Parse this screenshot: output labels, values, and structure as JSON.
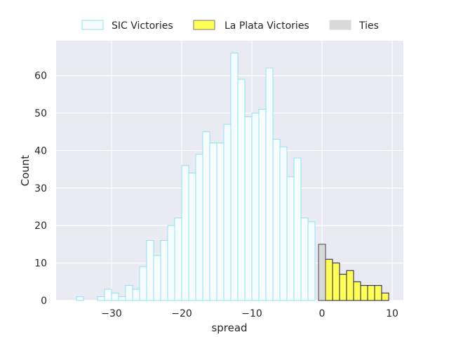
{
  "chart_data": {
    "type": "bar",
    "title": "",
    "xlabel": "spread",
    "ylabel": "Count",
    "xlim": [
      -37.9,
      11.6
    ],
    "ylim": [
      0,
      69.3
    ],
    "xticks": [
      -30,
      -20,
      -10,
      0,
      10
    ],
    "xtick_labels": [
      "−30",
      "−20",
      "−10",
      "0",
      "10"
    ],
    "yticks": [
      0,
      10,
      20,
      30,
      40,
      50,
      60
    ],
    "ytick_labels": [
      "0",
      "10",
      "20",
      "30",
      "40",
      "50",
      "60"
    ],
    "grid": true,
    "legend_placement": "top-center",
    "bin_width": 1,
    "series": [
      {
        "name": "SIC Victories",
        "color": "#f7fdfe",
        "edge_color": "#8ee3ee",
        "bins": [
          {
            "left": -35,
            "count": 1
          },
          {
            "left": -34,
            "count": 0
          },
          {
            "left": -33,
            "count": 0
          },
          {
            "left": -32,
            "count": 1
          },
          {
            "left": -31,
            "count": 3
          },
          {
            "left": -30,
            "count": 2
          },
          {
            "left": -29,
            "count": 1
          },
          {
            "left": -28,
            "count": 4
          },
          {
            "left": -27,
            "count": 3
          },
          {
            "left": -26,
            "count": 9
          },
          {
            "left": -25,
            "count": 16
          },
          {
            "left": -24,
            "count": 12
          },
          {
            "left": -23,
            "count": 16
          },
          {
            "left": -22,
            "count": 20
          },
          {
            "left": -21,
            "count": 22
          },
          {
            "left": -20,
            "count": 36
          },
          {
            "left": -19,
            "count": 34
          },
          {
            "left": -18,
            "count": 39
          },
          {
            "left": -17,
            "count": 45
          },
          {
            "left": -16,
            "count": 42
          },
          {
            "left": -15,
            "count": 42
          },
          {
            "left": -14,
            "count": 47
          },
          {
            "left": -13,
            "count": 66
          },
          {
            "left": -12,
            "count": 59
          },
          {
            "left": -11,
            "count": 49
          },
          {
            "left": -10,
            "count": 50
          },
          {
            "left": -9,
            "count": 51
          },
          {
            "left": -8,
            "count": 62
          },
          {
            "left": -7,
            "count": 43
          },
          {
            "left": -6,
            "count": 41
          },
          {
            "left": -5,
            "count": 33
          },
          {
            "left": -4,
            "count": 38
          },
          {
            "left": -3,
            "count": 22
          },
          {
            "left": -2,
            "count": 21
          }
        ]
      },
      {
        "name": "La Plata Victories",
        "color": "#ffff55",
        "edge_color": "#1a1a4a",
        "bins": [
          {
            "left": 0.5,
            "count": 11
          },
          {
            "left": 1.5,
            "count": 10
          },
          {
            "left": 2.5,
            "count": 7
          },
          {
            "left": 3.5,
            "count": 8
          },
          {
            "left": 4.5,
            "count": 5
          },
          {
            "left": 5.5,
            "count": 4
          },
          {
            "left": 6.5,
            "count": 4
          },
          {
            "left": 7.5,
            "count": 4
          },
          {
            "left": 8.5,
            "count": 2
          }
        ]
      },
      {
        "name": "Ties",
        "color": "#d9d9d9",
        "edge_color": "#444444",
        "bins": [
          {
            "left": -0.5,
            "count": 15
          }
        ]
      }
    ]
  }
}
